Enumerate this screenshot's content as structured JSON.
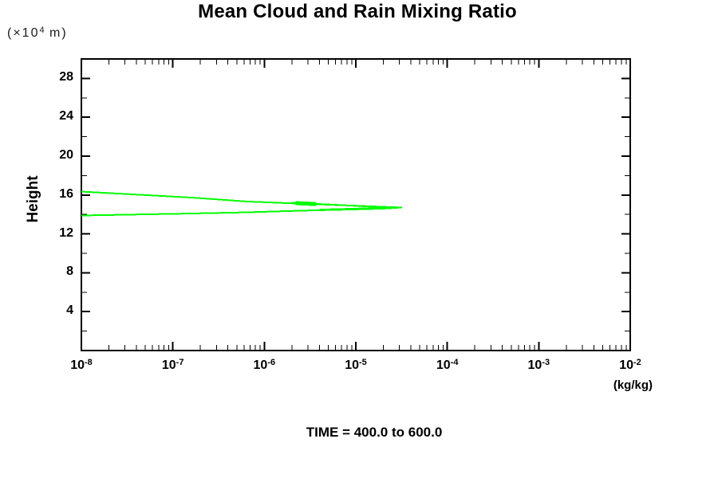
{
  "chart_data": {
    "type": "line",
    "title": "Mean Cloud and Rain Mixing Ratio",
    "footer": "TIME = 400.0 to 600.0",
    "ylabel": "Height",
    "y_unit_label": {
      "prefix": "(×10",
      "sup": "4",
      "suffix": " m)"
    },
    "x_unit_label": "(kg/kg)",
    "x_scale": "log",
    "x_base": "10",
    "x_decade_exponents": [
      -8,
      -7,
      -6,
      -5,
      -4,
      -3,
      -2
    ],
    "xlim": [
      1e-08,
      0.01
    ],
    "ylim": [
      0,
      30
    ],
    "y_major_ticks": [
      4,
      8,
      12,
      16,
      20,
      24,
      28
    ],
    "y_minor_step": 2,
    "grid": false,
    "legend": "none",
    "axis_color": "#000000",
    "line_color": "#00ff00",
    "series": [
      {
        "name": "mean-cloud-mixing-ratio-profile",
        "color": "#00ff00",
        "points_value_height": [
          [
            1e-08,
            16.35
          ],
          [
            1.6e-07,
            15.74
          ],
          [
            6.6e-07,
            15.33
          ],
          [
            2.3e-06,
            15.12
          ],
          [
            8.9e-06,
            14.92
          ],
          [
            2e-05,
            14.79
          ],
          [
            3.16e-05,
            14.71
          ],
          [
            2e-05,
            14.6
          ],
          [
            8.9e-06,
            14.51
          ],
          [
            2.6e-06,
            14.39
          ],
          [
            6.6e-07,
            14.22
          ],
          [
            1.6e-07,
            14.1
          ],
          [
            1e-08,
            13.89
          ]
        ]
      },
      {
        "name": "mean-rain-mixing-ratio-profile",
        "color": "#00ff00",
        "points_value_height": [
          [
            2e-06,
            15.2
          ],
          [
            4.5e-06,
            15.05
          ],
          [
            1.05e-05,
            14.88
          ],
          [
            2.2e-05,
            14.73
          ],
          [
            1e-05,
            14.6
          ],
          [
            4e-06,
            14.5
          ]
        ]
      }
    ],
    "overlap_blob": {
      "points_value_height": [
        [
          2.2e-06,
          15.16
        ],
        [
          3.7e-06,
          15.07
        ]
      ],
      "stroke_width": 5
    }
  }
}
